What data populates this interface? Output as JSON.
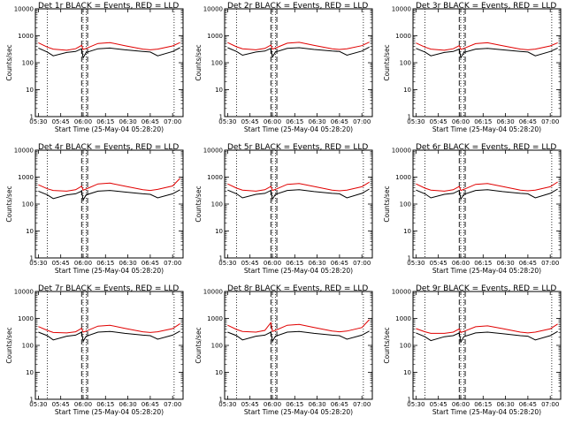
{
  "chart_data": [
    {
      "type": "line",
      "title": "Det 1r BLACK = Events, RED = LLD",
      "xlabel": "Start Time (25-May-04 05:28:20)",
      "ylabel": "Counts/sec",
      "yscale": "log",
      "ylim": [
        1,
        10000
      ],
      "x_ticks": [
        "05:30",
        "05:45",
        "06:00",
        "06:15",
        "06:30",
        "06:45",
        "07:00"
      ],
      "y_ticks": [
        "1",
        "10",
        "100",
        "1000",
        "10000"
      ],
      "grid": false,
      "legend": "none",
      "series": [
        {
          "color": "#000000",
          "x": [
            "05:30",
            "05:36",
            "05:40",
            "05:49",
            "05:55",
            "05:59",
            "06:00",
            "06:02",
            "06:10",
            "06:18",
            "06:28",
            "06:40",
            "06:45",
            "06:50",
            "07:00",
            "07:05"
          ],
          "values": [
            350,
            250,
            180,
            240,
            260,
            330,
            150,
            240,
            330,
            350,
            300,
            260,
            250,
            180,
            260,
            360
          ]
        },
        {
          "color": "#e00000",
          "x": [
            "05:30",
            "05:36",
            "05:40",
            "05:49",
            "05:55",
            "05:59",
            "06:00",
            "06:02",
            "06:10",
            "06:18",
            "06:28",
            "06:40",
            "06:45",
            "06:50",
            "07:00",
            "07:05"
          ],
          "values": [
            550,
            380,
            320,
            290,
            330,
            440,
            310,
            340,
            520,
            560,
            430,
            320,
            300,
            320,
            420,
            560
          ]
        }
      ],
      "annotations": {
        "dotted_times": [
          "05:36",
          "06:00",
          "06:02",
          "07:01"
        ],
        "dashed_times": [
          "05:59",
          "06:03"
        ]
      }
    },
    {
      "type": "line",
      "title": "Det 2r BLACK = Events, RED = LLD",
      "xlabel": "Start Time (25-May-04 05:28:20)",
      "ylabel": "Counts/sec",
      "yscale": "log",
      "ylim": [
        1,
        10000
      ],
      "x_ticks": [
        "05:30",
        "05:45",
        "06:00",
        "06:15",
        "06:30",
        "06:45",
        "07:00"
      ],
      "y_ticks": [
        "1",
        "10",
        "100",
        "1000",
        "10000"
      ],
      "grid": false,
      "legend": "none",
      "series": [
        {
          "color": "#000000",
          "x": [
            "05:30",
            "05:36",
            "05:40",
            "05:49",
            "05:55",
            "05:59",
            "06:00",
            "06:02",
            "06:10",
            "06:18",
            "06:28",
            "06:40",
            "06:45",
            "06:50",
            "07:00",
            "07:05"
          ],
          "values": [
            360,
            260,
            190,
            250,
            270,
            340,
            160,
            250,
            340,
            360,
            310,
            270,
            260,
            190,
            270,
            380
          ]
        },
        {
          "color": "#e00000",
          "x": [
            "05:30",
            "05:36",
            "05:40",
            "05:49",
            "05:55",
            "05:59",
            "06:00",
            "06:02",
            "06:10",
            "06:18",
            "06:28",
            "06:40",
            "06:45",
            "06:50",
            "07:00",
            "07:05"
          ],
          "values": [
            560,
            390,
            330,
            300,
            340,
            450,
            320,
            350,
            530,
            570,
            440,
            330,
            310,
            330,
            430,
            580
          ]
        }
      ],
      "annotations": {
        "dotted_times": [
          "05:36",
          "06:00",
          "06:02",
          "07:01"
        ],
        "dashed_times": [
          "05:59",
          "06:03"
        ]
      }
    },
    {
      "type": "line",
      "title": "Det 3r BLACK = Events, RED = LLD",
      "xlabel": "Start Time (25-May-04 05:28:20)",
      "ylabel": "Counts/sec",
      "yscale": "log",
      "ylim": [
        1,
        10000
      ],
      "x_ticks": [
        "05:30",
        "05:45",
        "06:00",
        "06:15",
        "06:30",
        "06:45",
        "07:00"
      ],
      "y_ticks": [
        "1",
        "10",
        "100",
        "1000",
        "10000"
      ],
      "grid": false,
      "legend": "none",
      "series": [
        {
          "color": "#000000",
          "x": [
            "05:30",
            "05:36",
            "05:40",
            "05:49",
            "05:55",
            "05:59",
            "06:00",
            "06:02",
            "06:10",
            "06:18",
            "06:28",
            "06:40",
            "06:45",
            "06:50",
            "07:00",
            "07:05"
          ],
          "values": [
            340,
            250,
            180,
            240,
            260,
            320,
            150,
            240,
            320,
            340,
            300,
            260,
            250,
            180,
            260,
            350
          ]
        },
        {
          "color": "#e00000",
          "x": [
            "05:30",
            "05:36",
            "05:40",
            "05:49",
            "05:55",
            "05:59",
            "06:00",
            "06:02",
            "06:10",
            "06:18",
            "06:28",
            "06:40",
            "06:45",
            "06:50",
            "07:00",
            "07:05"
          ],
          "values": [
            540,
            380,
            320,
            290,
            330,
            430,
            310,
            340,
            510,
            550,
            430,
            320,
            300,
            320,
            420,
            550
          ]
        }
      ],
      "annotations": {
        "dotted_times": [
          "05:36",
          "06:00",
          "06:02",
          "07:01"
        ],
        "dashed_times": [
          "05:59",
          "06:03"
        ]
      }
    },
    {
      "type": "line",
      "title": "Det 4r BLACK = Events, RED = LLD",
      "xlabel": "Start Time (25-May-04 05:28:20)",
      "ylabel": "Counts/sec",
      "yscale": "log",
      "ylim": [
        1,
        10000
      ],
      "x_ticks": [
        "05:30",
        "05:45",
        "06:00",
        "06:15",
        "06:30",
        "06:45",
        "07:00"
      ],
      "y_ticks": [
        "1",
        "10",
        "100",
        "1000",
        "10000"
      ],
      "grid": false,
      "legend": "none",
      "series": [
        {
          "color": "#000000",
          "x": [
            "05:30",
            "05:36",
            "05:40",
            "05:49",
            "05:55",
            "05:59",
            "06:00",
            "06:02",
            "06:10",
            "06:18",
            "06:28",
            "06:40",
            "06:45",
            "06:50",
            "07:00",
            "07:05"
          ],
          "values": [
            300,
            220,
            160,
            220,
            240,
            300,
            140,
            220,
            300,
            320,
            280,
            240,
            230,
            170,
            240,
            340
          ]
        },
        {
          "color": "#e00000",
          "x": [
            "05:30",
            "05:36",
            "05:40",
            "05:49",
            "05:55",
            "05:59",
            "06:00",
            "06:02",
            "06:10",
            "06:18",
            "06:28",
            "06:40",
            "06:45",
            "06:50",
            "07:00",
            "07:05"
          ],
          "values": [
            520,
            370,
            320,
            300,
            340,
            460,
            330,
            360,
            560,
            600,
            460,
            340,
            320,
            350,
            470,
            900
          ]
        }
      ],
      "annotations": {
        "dotted_times": [
          "05:36",
          "06:00",
          "06:02",
          "07:01"
        ],
        "dashed_times": [
          "05:59",
          "06:03"
        ]
      }
    },
    {
      "type": "line",
      "title": "Det 5r BLACK = Events, RED = LLD",
      "xlabel": "Start Time (25-May-04 05:28:20)",
      "ylabel": "Counts/sec",
      "yscale": "log",
      "ylim": [
        1,
        10000
      ],
      "x_ticks": [
        "05:30",
        "05:45",
        "06:00",
        "06:15",
        "06:30",
        "06:45",
        "07:00"
      ],
      "y_ticks": [
        "1",
        "10",
        "100",
        "1000",
        "10000"
      ],
      "grid": false,
      "legend": "none",
      "series": [
        {
          "color": "#000000",
          "x": [
            "05:30",
            "05:36",
            "05:40",
            "05:49",
            "05:55",
            "05:59",
            "06:00",
            "06:02",
            "06:10",
            "06:18",
            "06:28",
            "06:40",
            "06:45",
            "06:50",
            "07:00",
            "07:05"
          ],
          "values": [
            330,
            240,
            170,
            230,
            250,
            320,
            150,
            230,
            320,
            340,
            290,
            250,
            240,
            170,
            250,
            360
          ]
        },
        {
          "color": "#e00000",
          "x": [
            "05:30",
            "05:36",
            "05:40",
            "05:49",
            "05:55",
            "05:59",
            "06:00",
            "06:02",
            "06:10",
            "06:18",
            "06:28",
            "06:40",
            "06:45",
            "06:50",
            "07:00",
            "07:05"
          ],
          "values": [
            560,
            390,
            330,
            300,
            340,
            450,
            320,
            350,
            540,
            580,
            450,
            330,
            310,
            330,
            440,
            650
          ]
        }
      ],
      "annotations": {
        "dotted_times": [
          "05:36",
          "06:00",
          "06:02",
          "07:01"
        ],
        "dashed_times": [
          "05:59",
          "06:03"
        ]
      }
    },
    {
      "type": "line",
      "title": "Det 6r BLACK = Events, RED = LLD",
      "xlabel": "Start Time (25-May-04 05:28:20)",
      "ylabel": "Counts/sec",
      "yscale": "log",
      "ylim": [
        1,
        10000
      ],
      "x_ticks": [
        "05:30",
        "05:45",
        "06:00",
        "06:15",
        "06:30",
        "06:45",
        "07:00"
      ],
      "y_ticks": [
        "1",
        "10",
        "100",
        "1000",
        "10000"
      ],
      "grid": false,
      "legend": "none",
      "series": [
        {
          "color": "#000000",
          "x": [
            "05:30",
            "05:36",
            "05:40",
            "05:49",
            "05:55",
            "05:59",
            "06:00",
            "06:02",
            "06:10",
            "06:18",
            "06:28",
            "06:40",
            "06:45",
            "06:50",
            "07:00",
            "07:05"
          ],
          "values": [
            330,
            240,
            170,
            230,
            250,
            320,
            150,
            230,
            320,
            340,
            290,
            250,
            240,
            170,
            250,
            360
          ]
        },
        {
          "color": "#e00000",
          "x": [
            "05:30",
            "05:36",
            "05:40",
            "05:49",
            "05:55",
            "05:59",
            "06:00",
            "06:02",
            "06:10",
            "06:18",
            "06:28",
            "06:40",
            "06:45",
            "06:50",
            "07:00",
            "07:05"
          ],
          "values": [
            560,
            390,
            330,
            300,
            340,
            450,
            320,
            350,
            540,
            580,
            450,
            330,
            310,
            330,
            440,
            660
          ]
        }
      ],
      "annotations": {
        "dotted_times": [
          "05:36",
          "06:00",
          "06:02",
          "07:01"
        ],
        "dashed_times": [
          "05:59",
          "06:03"
        ]
      }
    },
    {
      "type": "line",
      "title": "Det 7r BLACK = Events, RED = LLD",
      "xlabel": "Start Time (25-May-04 05:28:20)",
      "ylabel": "Counts/sec",
      "yscale": "log",
      "ylim": [
        1,
        10000
      ],
      "x_ticks": [
        "05:30",
        "05:45",
        "06:00",
        "06:15",
        "06:30",
        "06:45",
        "07:00"
      ],
      "y_ticks": [
        "1",
        "10",
        "100",
        "1000",
        "10000"
      ],
      "grid": false,
      "legend": "none",
      "series": [
        {
          "color": "#000000",
          "x": [
            "05:30",
            "05:36",
            "05:40",
            "05:49",
            "05:55",
            "05:59",
            "06:00",
            "06:02",
            "06:10",
            "06:18",
            "06:28",
            "06:40",
            "06:45",
            "06:50",
            "07:00",
            "07:05"
          ],
          "values": [
            310,
            230,
            160,
            220,
            240,
            310,
            140,
            220,
            310,
            330,
            280,
            240,
            230,
            170,
            240,
            340
          ]
        },
        {
          "color": "#e00000",
          "x": [
            "05:30",
            "05:36",
            "05:40",
            "05:49",
            "05:55",
            "05:59",
            "06:00",
            "06:02",
            "06:10",
            "06:18",
            "06:28",
            "06:40",
            "06:45",
            "06:50",
            "07:00",
            "07:05"
          ],
          "values": [
            500,
            360,
            300,
            290,
            320,
            430,
            310,
            340,
            520,
            560,
            430,
            320,
            300,
            320,
            420,
            640
          ]
        }
      ],
      "annotations": {
        "dotted_times": [
          "05:36",
          "06:00",
          "06:02",
          "07:01"
        ],
        "dashed_times": [
          "05:59",
          "06:03"
        ]
      }
    },
    {
      "type": "line",
      "title": "Det 8r BLACK = Events, RED = LLD",
      "xlabel": "Start Time (25-May-04 05:28:20)",
      "ylabel": "Counts/sec",
      "yscale": "log",
      "ylim": [
        1,
        10000
      ],
      "x_ticks": [
        "05:30",
        "05:45",
        "06:00",
        "06:15",
        "06:30",
        "06:45",
        "07:00"
      ],
      "y_ticks": [
        "1",
        "10",
        "100",
        "1000",
        "10000"
      ],
      "grid": false,
      "legend": "none",
      "series": [
        {
          "color": "#000000",
          "x": [
            "05:30",
            "05:36",
            "05:40",
            "05:49",
            "05:55",
            "05:59",
            "06:00",
            "06:02",
            "06:10",
            "06:18",
            "06:28",
            "06:40",
            "06:45",
            "06:50",
            "07:00",
            "07:05"
          ],
          "values": [
            310,
            230,
            160,
            220,
            240,
            310,
            140,
            220,
            310,
            330,
            280,
            240,
            230,
            170,
            240,
            340
          ]
        },
        {
          "color": "#e00000",
          "x": [
            "05:30",
            "05:36",
            "05:40",
            "05:49",
            "05:55",
            "05:59",
            "06:00",
            "06:02",
            "06:10",
            "06:18",
            "06:28",
            "06:40",
            "06:45",
            "06:50",
            "07:00",
            "07:05"
          ],
          "values": [
            560,
            390,
            330,
            310,
            360,
            700,
            330,
            360,
            560,
            600,
            460,
            340,
            320,
            340,
            460,
            900
          ]
        }
      ],
      "annotations": {
        "dotted_times": [
          "05:36",
          "06:00",
          "06:02",
          "07:01"
        ],
        "dashed_times": [
          "05:59",
          "06:03"
        ]
      }
    },
    {
      "type": "line",
      "title": "Det 9r BLACK = Events, RED = LLD",
      "xlabel": "Start Time (25-May-04 05:28:20)",
      "ylabel": "Counts/sec",
      "yscale": "log",
      "ylim": [
        1,
        10000
      ],
      "x_ticks": [
        "05:30",
        "05:45",
        "06:00",
        "06:15",
        "06:30",
        "06:45",
        "07:00"
      ],
      "y_ticks": [
        "1",
        "10",
        "100",
        "1000",
        "10000"
      ],
      "grid": false,
      "legend": "none",
      "series": [
        {
          "color": "#000000",
          "x": [
            "05:30",
            "05:36",
            "05:40",
            "05:49",
            "05:55",
            "05:59",
            "06:00",
            "06:02",
            "06:10",
            "06:18",
            "06:28",
            "06:40",
            "06:45",
            "06:50",
            "07:00",
            "07:05"
          ],
          "values": [
            290,
            210,
            150,
            210,
            230,
            290,
            130,
            210,
            290,
            310,
            270,
            230,
            220,
            160,
            230,
            330
          ]
        },
        {
          "color": "#e00000",
          "x": [
            "05:30",
            "05:36",
            "05:40",
            "05:49",
            "05:55",
            "05:59",
            "06:00",
            "06:02",
            "06:10",
            "06:18",
            "06:28",
            "06:40",
            "06:45",
            "06:50",
            "07:00",
            "07:05"
          ],
          "values": [
            420,
            320,
            280,
            280,
            310,
            410,
            300,
            330,
            490,
            530,
            420,
            310,
            290,
            310,
            410,
            620
          ]
        }
      ],
      "annotations": {
        "dotted_times": [
          "05:36",
          "06:00",
          "06:02",
          "07:01"
        ],
        "dashed_times": [
          "05:59",
          "06:03"
        ]
      }
    }
  ]
}
